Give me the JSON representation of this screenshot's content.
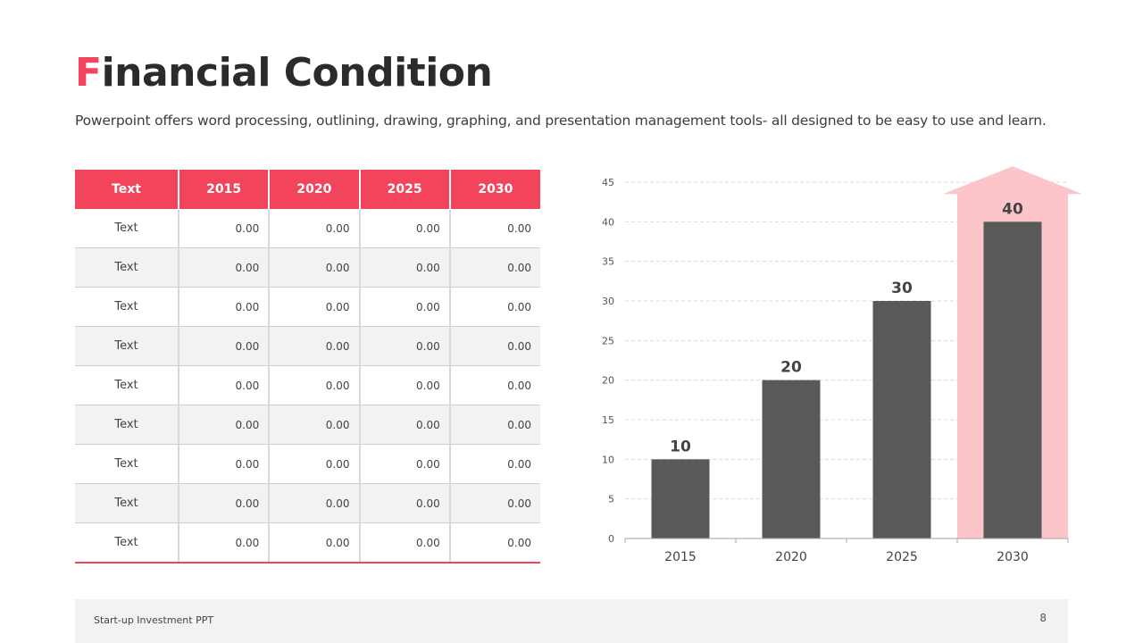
{
  "slide": {
    "title_first": "F",
    "title_rest": "inancial Condition",
    "subtitle": "Powerpoint offers word processing, outlining, drawing, graphing, and presentation management tools- all designed to be easy to use and learn.",
    "footer": "Start-up Investment PPT",
    "page_number": "8"
  },
  "table": {
    "headers": [
      "Text",
      "2015",
      "2020",
      "2025",
      "2030"
    ],
    "rows": [
      [
        "Text",
        "0.00",
        "0.00",
        "0.00",
        "0.00"
      ],
      [
        "Text",
        "0.00",
        "0.00",
        "0.00",
        "0.00"
      ],
      [
        "Text",
        "0.00",
        "0.00",
        "0.00",
        "0.00"
      ],
      [
        "Text",
        "0.00",
        "0.00",
        "0.00",
        "0.00"
      ],
      [
        "Text",
        "0.00",
        "0.00",
        "0.00",
        "0.00"
      ],
      [
        "Text",
        "0.00",
        "0.00",
        "0.00",
        "0.00"
      ],
      [
        "Text",
        "0.00",
        "0.00",
        "0.00",
        "0.00"
      ],
      [
        "Text",
        "0.00",
        "0.00",
        "0.00",
        "0.00"
      ],
      [
        "Text",
        "0.00",
        "0.00",
        "0.00",
        "0.00"
      ]
    ]
  },
  "chart_data": {
    "type": "bar",
    "categories": [
      "2015",
      "2020",
      "2025",
      "2030"
    ],
    "values": [
      10,
      20,
      30,
      40
    ],
    "ylim": [
      0,
      45
    ],
    "yticks": [
      0,
      5,
      10,
      15,
      20,
      25,
      30,
      35,
      40,
      45
    ],
    "title": "",
    "xlabel": "",
    "ylabel": "",
    "grid": true,
    "legend": "none",
    "data_labels": true,
    "highlight_category": "2030",
    "colors": {
      "bar": "#595959",
      "highlight_arrow": "#fcc5ca",
      "grid": "#d9d9d9",
      "axis": "#a6a6a6"
    }
  },
  "colors": {
    "accent": "#f2445a",
    "title": "#2b2b2b",
    "row_alt": "#f2f2f2"
  }
}
